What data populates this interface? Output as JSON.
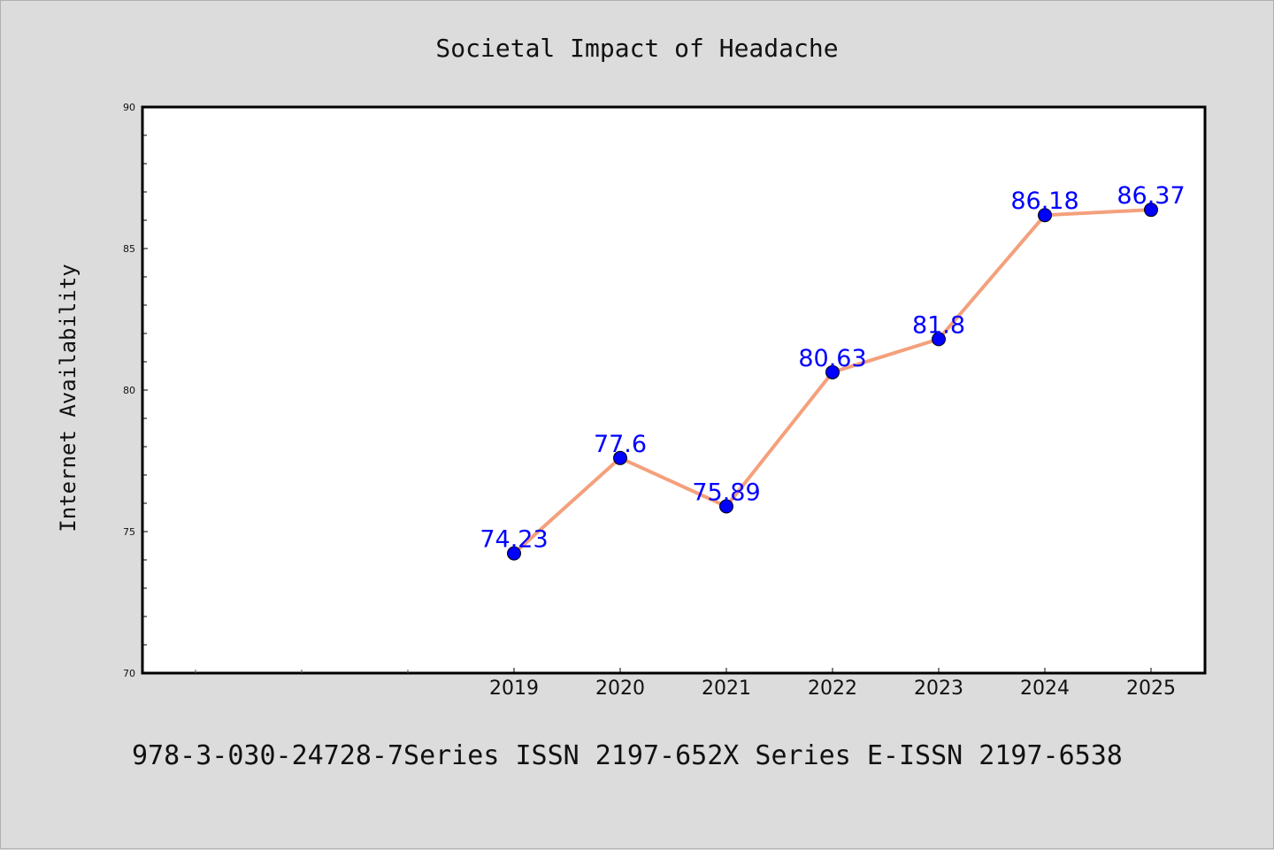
{
  "chart_data": {
    "type": "line",
    "title": "Societal Impact of Headache",
    "ylabel": "Internet Availability",
    "xlabel": "",
    "categories": [
      "2019",
      "2020",
      "2021",
      "2022",
      "2023",
      "2024",
      "2025"
    ],
    "series": [
      {
        "values": [
          74.23,
          77.6,
          75.89,
          80.63,
          81.8,
          86.18,
          86.37
        ]
      }
    ],
    "data_labels": [
      "74.23",
      "77.6",
      "75.89",
      "80.63",
      "81.8",
      "86.18",
      "86.37"
    ],
    "ylim": [
      70,
      90
    ],
    "y_ticks": [
      "70",
      "75",
      "80",
      "85",
      "90"
    ],
    "grid": false,
    "colors": {
      "line": "#f4a07c",
      "marker": "#0000ff",
      "label": "#0000ff",
      "background": "#dcdcdc",
      "plot_background": "#ffffff"
    }
  },
  "footer": {
    "text": "978-3-030-24728-7Series ISSN 2197-652X Series E-ISSN 2197-6538"
  }
}
